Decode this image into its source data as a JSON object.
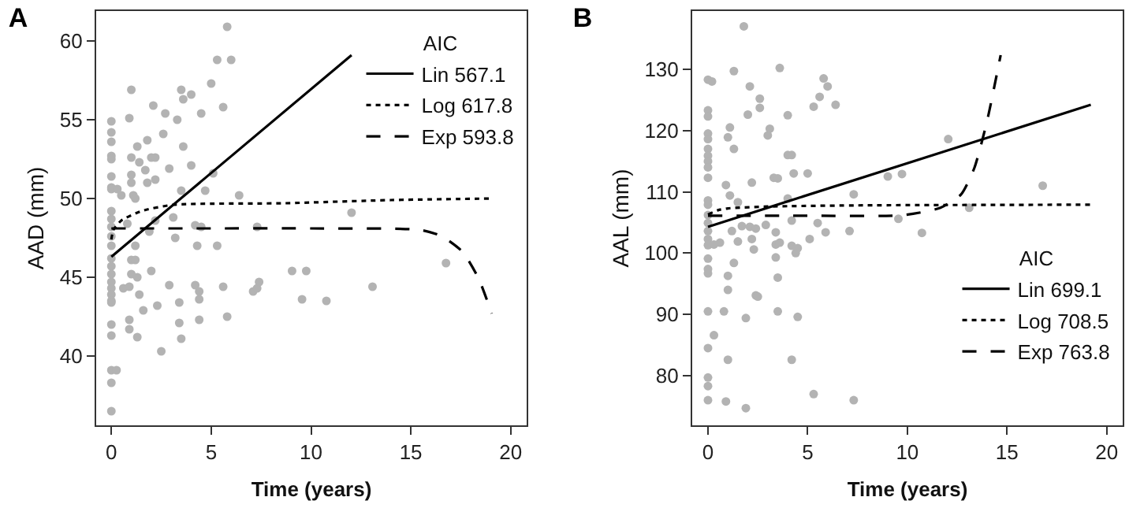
{
  "chart_data": [
    {
      "type": "scatter",
      "title": "A",
      "xlabel": "Time (years)",
      "ylabel": "AAD (mm)",
      "legend_title": "AIC",
      "legend": "top right",
      "grid": false,
      "xlim": [
        -0.76,
        20.8
      ],
      "ylim": [
        35.6,
        61.9
      ],
      "xticks": [
        0,
        5,
        10,
        15,
        20
      ],
      "yticks": [
        40,
        45,
        50,
        55,
        60
      ],
      "series": [
        {
          "marker": "circle",
          "color": "#b3b3b3",
          "x": [
            0,
            0,
            0,
            0,
            0,
            0,
            0,
            0,
            0,
            0,
            0,
            0,
            0,
            0,
            0,
            0,
            0,
            0,
            0,
            0,
            0,
            0,
            0,
            0,
            0,
            0,
            0.26,
            0.3,
            0.5,
            1.0,
            0.9,
            1.0,
            1.0,
            1.0,
            1.1,
            1.2,
            0.8,
            0.6,
            0.9,
            1.0,
            1.2,
            1.0,
            1.3,
            1.2,
            0.9,
            0.9,
            1.3,
            1.3,
            1.4,
            1.7,
            1.8,
            1.8,
            2.0,
            2.2,
            2.1,
            2.2,
            1.9,
            2.2,
            1.4,
            1.6,
            2.0,
            2.3,
            2.5,
            2.7,
            2.9,
            2.6,
            2.9,
            3.1,
            3.2,
            3.3,
            3.5,
            3.6,
            3.6,
            3.5,
            3.4,
            3.4,
            3.5,
            4.0,
            4.0,
            4.2,
            4.3,
            4.5,
            4.2,
            4.4,
            4.4,
            4.4,
            4.5,
            4.7,
            5.0,
            5.3,
            5.1,
            5.3,
            5.6,
            5.6,
            5.8,
            6.0,
            5.8,
            6.4,
            7.1,
            7.3,
            7.4,
            7.3,
            9.05,
            9.76,
            9.55,
            10.77,
            12.03,
            13.08,
            16.76
          ],
          "values": [
            54.9,
            54.2,
            53.6,
            52.7,
            52.5,
            51.4,
            50.7,
            50.6,
            49.2,
            48.7,
            48.2,
            47.6,
            47.0,
            46.2,
            45.7,
            45.2,
            44.7,
            44.3,
            43.9,
            43.5,
            43.4,
            42.0,
            41.3,
            39.1,
            38.3,
            36.5,
            39.1,
            50.6,
            50.2,
            56.9,
            55.1,
            52.6,
            51.5,
            51.0,
            50.2,
            50.0,
            48.4,
            44.3,
            44.4,
            46.1,
            46.1,
            45.2,
            45.0,
            47.0,
            42.3,
            41.7,
            41.2,
            53.3,
            52.3,
            51.8,
            53.7,
            51.0,
            52.6,
            52.6,
            55.9,
            51.2,
            47.9,
            48.6,
            43.9,
            42.9,
            45.4,
            43.2,
            40.3,
            55.4,
            44.5,
            54.1,
            51.9,
            48.8,
            47.5,
            55.0,
            56.9,
            56.3,
            53.3,
            50.5,
            43.4,
            42.1,
            41.1,
            56.6,
            52.1,
            48.3,
            47.0,
            48.2,
            44.5,
            44.1,
            43.6,
            42.3,
            55.4,
            50.5,
            57.3,
            58.8,
            51.6,
            47.0,
            55.8,
            44.4,
            60.9,
            58.8,
            42.5,
            50.2,
            44.1,
            44.3,
            44.7,
            48.2,
            45.4,
            45.4,
            43.6,
            43.5,
            49.1,
            44.4,
            45.9
          ]
        },
        {
          "type": "line",
          "marker": "none",
          "name": "Lin 567.1",
          "color": "#000000",
          "line_style": "solid",
          "x": [
            0,
            12.03
          ],
          "values": [
            46.3,
            59.1
          ]
        },
        {
          "type": "line",
          "marker": "none",
          "name": "Log 617.8",
          "color": "#000000",
          "line_style": "dotted",
          "x": [
            0,
            0.1,
            0.5,
            1.5,
            3.1,
            8.7,
            14,
            19.1
          ],
          "values": [
            47.4,
            48.0,
            48.6,
            49.2,
            49.6,
            49.7,
            49.9,
            50.0
          ]
        },
        {
          "type": "line",
          "marker": "none",
          "name": "Exp 593.8",
          "color": "#000000",
          "line_style": "dashed",
          "x": [
            0,
            5,
            10,
            15.5,
            16.55,
            17.6,
            18.4,
            19.05
          ],
          "values": [
            48.1,
            48.1,
            48.1,
            48.0,
            47.6,
            46.6,
            44.9,
            42.7
          ]
        }
      ]
    },
    {
      "type": "scatter",
      "title": "B",
      "xlabel": "Time (years)",
      "ylabel": "AAL (mm)",
      "legend_title": "AIC",
      "legend": "bottom right",
      "grid": false,
      "xlim": [
        -0.79,
        20.8
      ],
      "ylim": [
        71.9,
        139.5
      ],
      "xticks": [
        0,
        5,
        10,
        15,
        20
      ],
      "yticks": [
        80,
        90,
        100,
        110,
        120,
        130
      ],
      "series": [
        {
          "marker": "circle",
          "color": "#b3b3b3",
          "x": [
            0,
            0,
            0,
            0,
            0,
            0,
            0,
            0,
            0,
            0,
            0,
            0,
            0,
            0,
            0,
            0,
            0,
            0,
            0,
            0,
            0,
            0,
            0,
            0,
            0,
            0.2,
            0.3,
            0.6,
            0.3,
            0.8,
            0.9,
            1.0,
            1.0,
            1.0,
            1.1,
            1.0,
            0.9,
            1.1,
            1.3,
            1.3,
            1.3,
            1.2,
            1.5,
            1.7,
            1.5,
            1.9,
            1.9,
            1.8,
            2.1,
            2.0,
            2.2,
            2.1,
            2.4,
            2.2,
            2.3,
            2.4,
            2.5,
            2.6,
            2.6,
            2.9,
            3.0,
            3.1,
            3.3,
            3.4,
            3.4,
            3.4,
            3.5,
            3.5,
            3.6,
            3.5,
            3.6,
            4.0,
            4.2,
            4.0,
            4.0,
            4.2,
            4.2,
            4.4,
            4.5,
            4.2,
            4.3,
            4.5,
            5.0,
            5.1,
            5.3,
            5.3,
            5.6,
            5.8,
            6.0,
            5.9,
            5.5,
            6.4,
            7.1,
            7.31,
            7.31,
            9.02,
            9.73,
            9.55,
            10.73,
            12.05,
            13.1,
            16.79
          ],
          "values": [
            128.3,
            123.3,
            122.3,
            119.5,
            118.6,
            117.0,
            115.9,
            115.0,
            114.0,
            112.3,
            108.6,
            107.9,
            106.2,
            104.9,
            103.6,
            102.3,
            101.3,
            99.1,
            97.4,
            96.7,
            90.5,
            84.5,
            79.7,
            78.3,
            76.0,
            128.0,
            86.6,
            101.7,
            101.4,
            90.5,
            75.8,
            82.6,
            94.0,
            96.3,
            120.5,
            118.9,
            111.1,
            109.4,
            117.0,
            129.7,
            98.4,
            103.6,
            101.9,
            104.4,
            108.3,
            74.7,
            89.4,
            137.0,
            127.2,
            122.6,
            111.5,
            104.3,
            104.0,
            102.3,
            100.6,
            93.1,
            92.9,
            125.2,
            123.7,
            104.6,
            119.2,
            120.3,
            112.3,
            101.4,
            99.3,
            103.4,
            96.0,
            90.5,
            130.2,
            112.2,
            101.7,
            116.0,
            116.0,
            122.5,
            108.9,
            105.3,
            101.2,
            100.0,
            100.8,
            82.6,
            113.0,
            89.6,
            113.0,
            102.3,
            77.0,
            123.9,
            125.5,
            128.5,
            127.2,
            103.4,
            104.9,
            124.2,
            103.6,
            109.6,
            76.0,
            112.5,
            112.9,
            105.6,
            103.3,
            118.6,
            107.4,
            111.0
          ]
        },
        {
          "type": "line",
          "marker": "none",
          "name": "Lin 699.1",
          "color": "#000000",
          "line_style": "solid",
          "x": [
            0,
            19.2
          ],
          "values": [
            104.3,
            124.2
          ]
        },
        {
          "type": "line",
          "marker": "none",
          "name": "Log 708.5",
          "color": "#000000",
          "line_style": "dotted",
          "x": [
            0,
            0.5,
            1,
            3,
            8,
            19.2
          ],
          "values": [
            106.3,
            107.0,
            107.3,
            107.6,
            107.8,
            107.9
          ]
        },
        {
          "type": "line",
          "marker": "none",
          "name": "Exp 763.8",
          "color": "#000000",
          "line_style": "dashed",
          "x": [
            0,
            5,
            9.8,
            11.66,
            12.7,
            13.36,
            14.0,
            14.68
          ],
          "values": [
            106.1,
            106.1,
            106.2,
            107.4,
            109.6,
            113.9,
            121.6,
            132.3
          ]
        }
      ]
    }
  ]
}
